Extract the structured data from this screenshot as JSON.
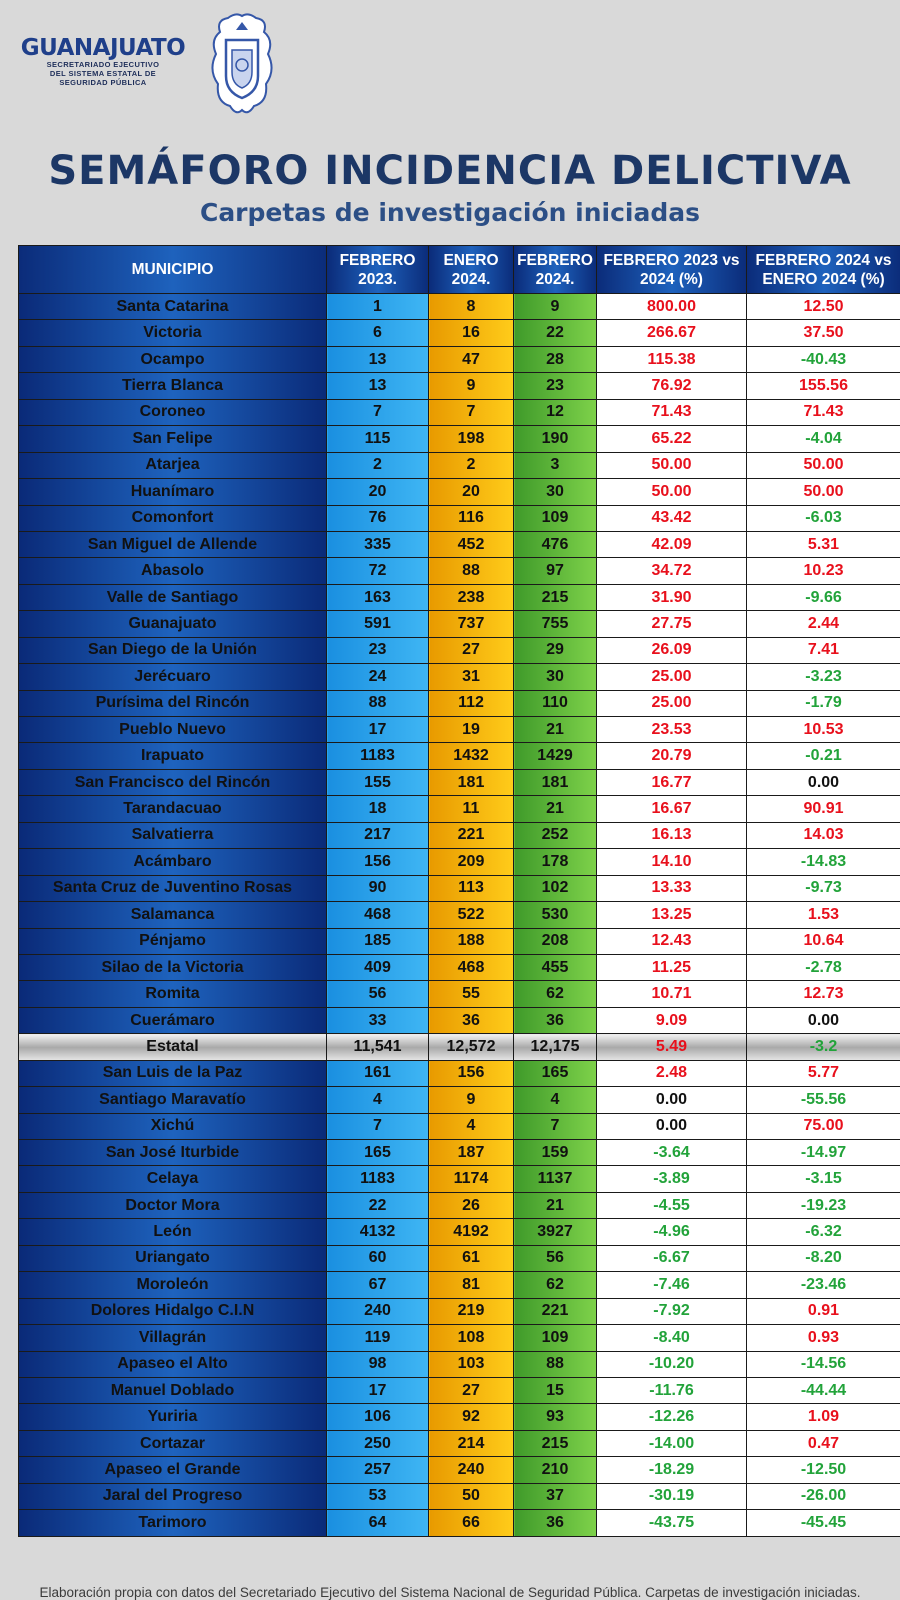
{
  "logo": {
    "name": "GUANAJUATO",
    "line1": "SECRETARIADO EJECUTIVO",
    "line2": "DEL SISTEMA ESTATAL DE",
    "line3": "SEGURIDAD PÚBLICA"
  },
  "title": "SEMÁFORO INCIDENCIA DELICTIVA",
  "subtitle": "Carpetas de investigación iniciadas",
  "table": {
    "headers": {
      "municipio": "MUNICIPIO",
      "feb2023": "FEBRERO 2023.",
      "ene2024": "ENERO 2024.",
      "feb2024": "FEBRERO 2024.",
      "pct1": "FEBRERO 2023 vs 2024 (%)",
      "pct2": "FEBRERO 2024 vs ENERO 2024 (%)"
    },
    "rows": [
      {
        "municipio": "Santa Catarina",
        "feb2023": "1",
        "ene2024": "8",
        "feb2024": "9",
        "pct1": "800.00",
        "pct2": "12.50"
      },
      {
        "municipio": "Victoria",
        "feb2023": "6",
        "ene2024": "16",
        "feb2024": "22",
        "pct1": "266.67",
        "pct2": "37.50"
      },
      {
        "municipio": "Ocampo",
        "feb2023": "13",
        "ene2024": "47",
        "feb2024": "28",
        "pct1": "115.38",
        "pct2": "-40.43"
      },
      {
        "municipio": "Tierra Blanca",
        "feb2023": "13",
        "ene2024": "9",
        "feb2024": "23",
        "pct1": "76.92",
        "pct2": "155.56"
      },
      {
        "municipio": "Coroneo",
        "feb2023": "7",
        "ene2024": "7",
        "feb2024": "12",
        "pct1": "71.43",
        "pct2": "71.43"
      },
      {
        "municipio": "San Felipe",
        "feb2023": "115",
        "ene2024": "198",
        "feb2024": "190",
        "pct1": "65.22",
        "pct2": "-4.04"
      },
      {
        "municipio": "Atarjea",
        "feb2023": "2",
        "ene2024": "2",
        "feb2024": "3",
        "pct1": "50.00",
        "pct2": "50.00"
      },
      {
        "municipio": "Huanímaro",
        "feb2023": "20",
        "ene2024": "20",
        "feb2024": "30",
        "pct1": "50.00",
        "pct2": "50.00"
      },
      {
        "municipio": "Comonfort",
        "feb2023": "76",
        "ene2024": "116",
        "feb2024": "109",
        "pct1": "43.42",
        "pct2": "-6.03"
      },
      {
        "municipio": "San Miguel de Allende",
        "feb2023": "335",
        "ene2024": "452",
        "feb2024": "476",
        "pct1": "42.09",
        "pct2": "5.31"
      },
      {
        "municipio": "Abasolo",
        "feb2023": "72",
        "ene2024": "88",
        "feb2024": "97",
        "pct1": "34.72",
        "pct2": "10.23"
      },
      {
        "municipio": "Valle de Santiago",
        "feb2023": "163",
        "ene2024": "238",
        "feb2024": "215",
        "pct1": "31.90",
        "pct2": "-9.66"
      },
      {
        "municipio": "Guanajuato",
        "feb2023": "591",
        "ene2024": "737",
        "feb2024": "755",
        "pct1": "27.75",
        "pct2": "2.44"
      },
      {
        "municipio": "San Diego de la Unión",
        "feb2023": "23",
        "ene2024": "27",
        "feb2024": "29",
        "pct1": "26.09",
        "pct2": "7.41"
      },
      {
        "municipio": "Jerécuaro",
        "feb2023": "24",
        "ene2024": "31",
        "feb2024": "30",
        "pct1": "25.00",
        "pct2": "-3.23"
      },
      {
        "municipio": "Purísima del Rincón",
        "feb2023": "88",
        "ene2024": "112",
        "feb2024": "110",
        "pct1": "25.00",
        "pct2": "-1.79"
      },
      {
        "municipio": "Pueblo Nuevo",
        "feb2023": "17",
        "ene2024": "19",
        "feb2024": "21",
        "pct1": "23.53",
        "pct2": "10.53"
      },
      {
        "municipio": "Irapuato",
        "feb2023": "1183",
        "ene2024": "1432",
        "feb2024": "1429",
        "pct1": "20.79",
        "pct2": "-0.21"
      },
      {
        "municipio": "San Francisco del Rincón",
        "feb2023": "155",
        "ene2024": "181",
        "feb2024": "181",
        "pct1": "16.77",
        "pct2": "0.00"
      },
      {
        "municipio": "Tarandacuao",
        "feb2023": "18",
        "ene2024": "11",
        "feb2024": "21",
        "pct1": "16.67",
        "pct2": "90.91"
      },
      {
        "municipio": "Salvatierra",
        "feb2023": "217",
        "ene2024": "221",
        "feb2024": "252",
        "pct1": "16.13",
        "pct2": "14.03"
      },
      {
        "municipio": "Acámbaro",
        "feb2023": "156",
        "ene2024": "209",
        "feb2024": "178",
        "pct1": "14.10",
        "pct2": "-14.83"
      },
      {
        "municipio": "Santa Cruz de Juventino Rosas",
        "feb2023": "90",
        "ene2024": "113",
        "feb2024": "102",
        "pct1": "13.33",
        "pct2": "-9.73"
      },
      {
        "municipio": "Salamanca",
        "feb2023": "468",
        "ene2024": "522",
        "feb2024": "530",
        "pct1": "13.25",
        "pct2": "1.53"
      },
      {
        "municipio": "Pénjamo",
        "feb2023": "185",
        "ene2024": "188",
        "feb2024": "208",
        "pct1": "12.43",
        "pct2": "10.64"
      },
      {
        "municipio": "Silao de la Victoria",
        "feb2023": "409",
        "ene2024": "468",
        "feb2024": "455",
        "pct1": "11.25",
        "pct2": "-2.78"
      },
      {
        "municipio": "Romita",
        "feb2023": "56",
        "ene2024": "55",
        "feb2024": "62",
        "pct1": "10.71",
        "pct2": "12.73"
      },
      {
        "municipio": "Cuerámaro",
        "feb2023": "33",
        "ene2024": "36",
        "feb2024": "36",
        "pct1": "9.09",
        "pct2": "0.00"
      },
      {
        "municipio": "Estatal",
        "feb2023": "11,541",
        "ene2024": "12,572",
        "feb2024": "12,175",
        "pct1": "5.49",
        "pct2": "-3.2",
        "estatal": true
      },
      {
        "municipio": "San Luis de la Paz",
        "feb2023": "161",
        "ene2024": "156",
        "feb2024": "165",
        "pct1": "2.48",
        "pct2": "5.77"
      },
      {
        "municipio": "Santiago Maravatío",
        "feb2023": "4",
        "ene2024": "9",
        "feb2024": "4",
        "pct1": "0.00",
        "pct2": "-55.56"
      },
      {
        "municipio": "Xichú",
        "feb2023": "7",
        "ene2024": "4",
        "feb2024": "7",
        "pct1": "0.00",
        "pct2": "75.00"
      },
      {
        "municipio": "San José Iturbide",
        "feb2023": "165",
        "ene2024": "187",
        "feb2024": "159",
        "pct1": "-3.64",
        "pct2": "-14.97"
      },
      {
        "municipio": "Celaya",
        "feb2023": "1183",
        "ene2024": "1174",
        "feb2024": "1137",
        "pct1": "-3.89",
        "pct2": "-3.15"
      },
      {
        "municipio": "Doctor Mora",
        "feb2023": "22",
        "ene2024": "26",
        "feb2024": "21",
        "pct1": "-4.55",
        "pct2": "-19.23"
      },
      {
        "municipio": "León",
        "feb2023": "4132",
        "ene2024": "4192",
        "feb2024": "3927",
        "pct1": "-4.96",
        "pct2": "-6.32"
      },
      {
        "municipio": "Uriangato",
        "feb2023": "60",
        "ene2024": "61",
        "feb2024": "56",
        "pct1": "-6.67",
        "pct2": "-8.20"
      },
      {
        "municipio": "Moroleón",
        "feb2023": "67",
        "ene2024": "81",
        "feb2024": "62",
        "pct1": "-7.46",
        "pct2": "-23.46"
      },
      {
        "municipio": "Dolores Hidalgo C.I.N",
        "feb2023": "240",
        "ene2024": "219",
        "feb2024": "221",
        "pct1": "-7.92",
        "pct2": "0.91"
      },
      {
        "municipio": "Villagrán",
        "feb2023": "119",
        "ene2024": "108",
        "feb2024": "109",
        "pct1": "-8.40",
        "pct2": "0.93"
      },
      {
        "municipio": "Apaseo el Alto",
        "feb2023": "98",
        "ene2024": "103",
        "feb2024": "88",
        "pct1": "-10.20",
        "pct2": "-14.56"
      },
      {
        "municipio": "Manuel Doblado",
        "feb2023": "17",
        "ene2024": "27",
        "feb2024": "15",
        "pct1": "-11.76",
        "pct2": "-44.44"
      },
      {
        "municipio": "Yuriria",
        "feb2023": "106",
        "ene2024": "92",
        "feb2024": "93",
        "pct1": "-12.26",
        "pct2": "1.09"
      },
      {
        "municipio": "Cortazar",
        "feb2023": "250",
        "ene2024": "214",
        "feb2024": "215",
        "pct1": "-14.00",
        "pct2": "0.47"
      },
      {
        "municipio": "Apaseo el Grande",
        "feb2023": "257",
        "ene2024": "240",
        "feb2024": "210",
        "pct1": "-18.29",
        "pct2": "-12.50"
      },
      {
        "municipio": "Jaral del Progreso",
        "feb2023": "53",
        "ene2024": "50",
        "feb2024": "37",
        "pct1": "-30.19",
        "pct2": "-26.00"
      },
      {
        "municipio": "Tarimoro",
        "feb2023": "64",
        "ene2024": "66",
        "feb2024": "36",
        "pct1": "-43.75",
        "pct2": "-45.45"
      }
    ]
  },
  "colors": {
    "increase": "#e8101c",
    "decrease": "#22a33a",
    "no_change": "#111111"
  },
  "footnote": "Elaboración propia con datos del Secretariado Ejecutivo del Sistema Nacional de Seguridad Pública. Carpetas de investigación iniciadas."
}
